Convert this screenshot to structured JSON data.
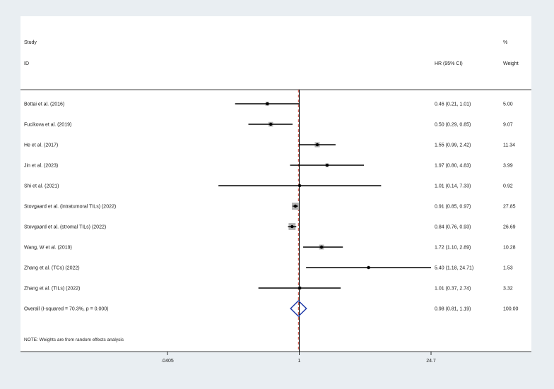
{
  "header": {
    "study_label": "Study",
    "id_label": "ID",
    "hr_label": "HR (95% CI)",
    "pct_label": "%",
    "weight_label": "Weight"
  },
  "note": "NOTE: Weights are from random effects analysis",
  "colors": {
    "background": "#e9eef2",
    "panel": "#ffffff",
    "ci_line": "#000000",
    "weight_box": "#b3b3b3",
    "diamond": "#1f3aa8",
    "overall_line": "#c0392b"
  },
  "chart_data": {
    "type": "forest",
    "xscale": "log",
    "xlim": [
      0.0405,
      24.7
    ],
    "xticks": [
      {
        "value": 0.0405,
        "label": ".0405"
      },
      {
        "value": 1,
        "label": "1"
      },
      {
        "value": 24.7,
        "label": "24.7"
      }
    ],
    "null_line": 1,
    "studies": [
      {
        "label": "Bottai et al. (2016)",
        "hr": 0.46,
        "lo": 0.21,
        "hi": 1.01,
        "ci_text": "0.46 (0.21, 1.01)",
        "weight": 5.0,
        "weight_text": "5.00"
      },
      {
        "label": "Fucikova et al. (2019)",
        "hr": 0.5,
        "lo": 0.29,
        "hi": 0.85,
        "ci_text": "0.50 (0.29, 0.85)",
        "weight": 9.07,
        "weight_text": "9.07"
      },
      {
        "label": "He et al. (2017)",
        "hr": 1.55,
        "lo": 0.99,
        "hi": 2.42,
        "ci_text": "1.55 (0.99, 2.42)",
        "weight": 11.34,
        "weight_text": "11.34"
      },
      {
        "label": "Jin et al. (2023)",
        "hr": 1.97,
        "lo": 0.8,
        "hi": 4.83,
        "ci_text": "1.97 (0.80, 4.83)",
        "weight": 3.99,
        "weight_text": "3.99"
      },
      {
        "label": "Shi et al. (2021)",
        "hr": 1.01,
        "lo": 0.14,
        "hi": 7.33,
        "ci_text": "1.01 (0.14, 7.33)",
        "weight": 0.92,
        "weight_text": "0.92"
      },
      {
        "label": "Stovgaard et al. (intratumoral TILs) (2022)",
        "hr": 0.91,
        "lo": 0.85,
        "hi": 0.97,
        "ci_text": "0.91 (0.85, 0.97)",
        "weight": 27.85,
        "weight_text": "27.85"
      },
      {
        "label": "Stovgaard et al. (stromal TILs) (2022)",
        "hr": 0.84,
        "lo": 0.76,
        "hi": 0.93,
        "ci_text": "0.84 (0.76, 0.93)",
        "weight": 26.69,
        "weight_text": "26.69"
      },
      {
        "label": "Wang, W et al. (2019)",
        "hr": 1.72,
        "lo": 1.1,
        "hi": 2.89,
        "ci_text": "1.72 (1.10, 2.89)",
        "weight": 10.28,
        "weight_text": "10.28"
      },
      {
        "label": "Zhang et al. (TCs) (2022)",
        "hr": 5.4,
        "lo": 1.18,
        "hi": 24.71,
        "ci_text": "5.40 (1.18, 24.71)",
        "weight": 1.53,
        "weight_text": "1.53"
      },
      {
        "label": "Zhang et al. (TILs) (2022)",
        "hr": 1.01,
        "lo": 0.37,
        "hi": 2.74,
        "ci_text": "1.01 (0.37, 2.74)",
        "weight": 3.32,
        "weight_text": "3.32"
      }
    ],
    "overall": {
      "label": "Overall  (I-squared = 70.3%, p = 0.000)",
      "hr": 0.98,
      "lo": 0.81,
      "hi": 1.19,
      "ci_text": "0.98 (0.81, 1.19)",
      "weight_text": "100.00"
    }
  }
}
